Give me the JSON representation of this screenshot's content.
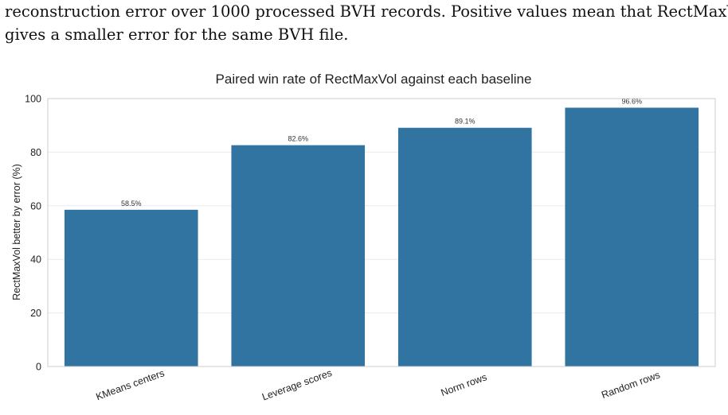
{
  "paper": {
    "line1": "reconstruction error over 1000 processed BVH records. Positive values mean that RectMaxVol",
    "line2": "gives a smaller error for the same BVH file."
  },
  "chart_data": {
    "type": "bar",
    "title": "Paired win rate of RectMaxVol against each baseline",
    "xlabel": "",
    "ylabel": "RectMaxVol better by error (%)",
    "categories": [
      "KMeans centers",
      "Leverage scores",
      "Norm rows",
      "Random rows"
    ],
    "values": [
      58.5,
      82.6,
      89.1,
      96.6
    ],
    "data_labels": [
      "58.5%",
      "82.6%",
      "89.1%",
      "96.6%"
    ],
    "ylim": [
      0,
      100
    ],
    "yticks": [
      0,
      20,
      40,
      60,
      80,
      100
    ],
    "grid": true,
    "bar_color": "#3274a1"
  }
}
